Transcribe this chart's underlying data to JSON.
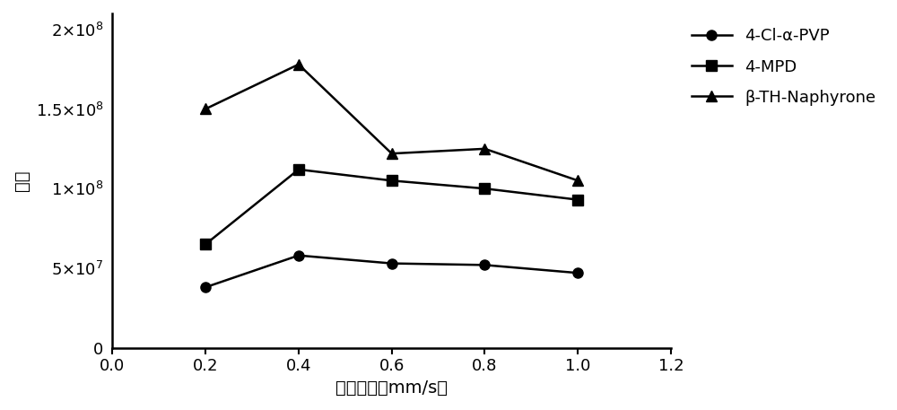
{
  "x": [
    0.2,
    0.4,
    0.6,
    0.8,
    1.0
  ],
  "series": [
    {
      "label": "4-Cl-α-PVP",
      "marker": "o",
      "color": "#000000",
      "values": [
        38000000.0,
        58000000.0,
        53000000.0,
        52000000.0,
        47000000.0
      ]
    },
    {
      "label": "4-MPD",
      "marker": "s",
      "color": "#000000",
      "values": [
        65000000.0,
        112000000.0,
        105000000.0,
        100000000.0,
        93000000.0
      ]
    },
    {
      "label": "β-TH-Naphyrone",
      "marker": "^",
      "color": "#000000",
      "values": [
        150000000.0,
        178000000.0,
        122000000.0,
        125000000.0,
        105000000.0
      ]
    }
  ],
  "xlabel": "进样速度（mm/s）",
  "ylabel": "响应",
  "xlim": [
    0.0,
    1.2
  ],
  "ylim": [
    0,
    210000000.0
  ],
  "xticks": [
    0.0,
    0.2,
    0.4,
    0.6,
    0.8,
    1.0,
    1.2
  ],
  "ytick_vals": [
    0,
    50000000.0,
    100000000.0,
    150000000.0,
    200000000.0
  ],
  "ytick_labels": [
    "0",
    "$5{\\times}10^7$",
    "$1{\\times}10^8$",
    "$1.5{\\times}10^8$",
    "$2{\\times}10^8$"
  ],
  "line_width": 1.8,
  "marker_size": 8,
  "font_size": 14,
  "tick_font_size": 13,
  "legend_font_size": 13,
  "background_color": "#ffffff"
}
